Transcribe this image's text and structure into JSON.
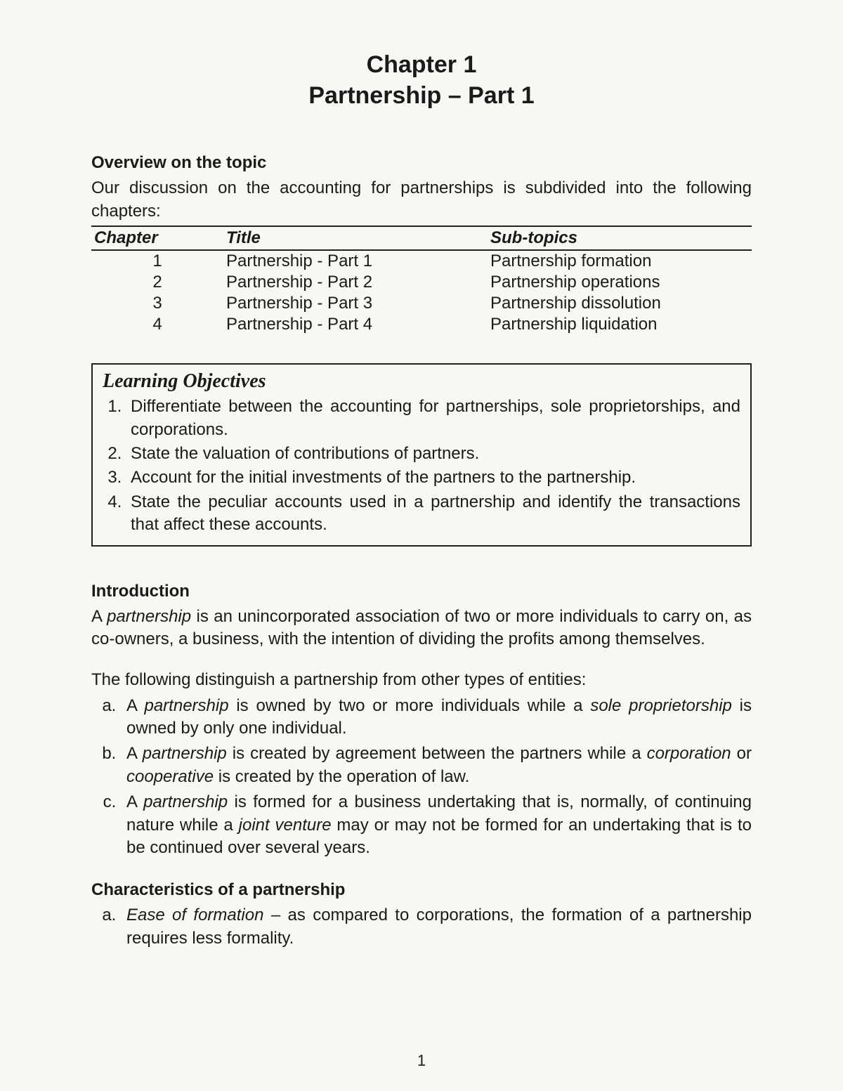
{
  "header": {
    "chapter_line": "Chapter 1",
    "subtitle_line": "Partnership – Part 1"
  },
  "overview": {
    "heading": "Overview on the topic",
    "intro": "Our discussion on the accounting for partnerships is subdivided into the following chapters:",
    "table": {
      "columns": [
        "Chapter",
        "Title",
        "Sub-topics"
      ],
      "rows": [
        [
          "1",
          "Partnership - Part 1",
          "Partnership formation"
        ],
        [
          "2",
          "Partnership - Part 2",
          "Partnership operations"
        ],
        [
          "3",
          "Partnership - Part 3",
          "Partnership dissolution"
        ],
        [
          "4",
          "Partnership - Part 4",
          "Partnership liquidation"
        ]
      ]
    }
  },
  "objectives": {
    "heading": "Learning Objectives",
    "items": [
      "Differentiate between the accounting for partnerships, sole proprietorships, and corporations.",
      "State the valuation of contributions of partners.",
      "Account for the initial investments of the partners to the partnership.",
      "State the peculiar accounts used in a partnership and identify the transactions that affect these accounts."
    ]
  },
  "introduction": {
    "heading": "Introduction",
    "para_html": "A <em>partnership</em> is an unincorporated association of two or more individuals to carry on, as co-owners, a business, with the intention of dividing the profits among themselves.",
    "distinguish_lead": "The following distinguish a partnership from other types of entities:",
    "distinguish_items_html": [
      "A <em>partnership</em> is owned by two or more individuals while a <em>sole proprietorship</em> is owned by only one individual.",
      "A <em>partnership</em> is created by agreement between the partners while a <em>corporation</em> or <em>cooperative</em> is created by the operation of law.",
      "A <em>partnership</em> is formed for a business undertaking that is, normally, of continuing nature while a <em>joint venture</em> may or may not be formed for an undertaking that is to be continued over several years."
    ]
  },
  "characteristics": {
    "heading": "Characteristics of a partnership",
    "items_html": [
      "<em>Ease of formation</em> – as compared to corporations, the formation of a partnership requires less formality."
    ]
  },
  "page_number": "1",
  "colors": {
    "text": "#1a1a1a",
    "background": "#f8f7f3",
    "border": "#222222"
  }
}
